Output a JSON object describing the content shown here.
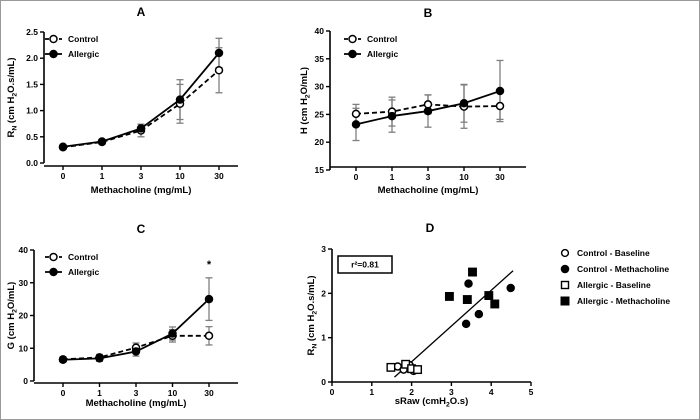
{
  "figure": {
    "background": "#ffffff",
    "border_color": "#9a9a9a"
  },
  "colors": {
    "series": "#000000",
    "error_bars": "#7f7f7f",
    "open_fill": "#ffffff"
  },
  "chart_data": [
    {
      "id": "A",
      "type": "line",
      "title": "A",
      "xlabel_segments": [
        {
          "t": "Methacholine (mg/mL)"
        }
      ],
      "ylabel_segments": [
        {
          "t": "R"
        },
        {
          "t": "N",
          "sub": true
        },
        {
          "t": " (cm H"
        },
        {
          "t": "2",
          "sub": true
        },
        {
          "t": "O.s/mL)"
        }
      ],
      "categories": [
        "0",
        "1",
        "3",
        "10",
        "30"
      ],
      "ylim": [
        0,
        2.5
      ],
      "yticks": [
        {
          "v": 0,
          "label": "0.0"
        },
        {
          "v": 0.5,
          "label": "0.5"
        },
        {
          "v": 1.0,
          "label": "1.0"
        },
        {
          "v": 1.5,
          "label": "1.5"
        },
        {
          "v": 2.0,
          "label": "2.0"
        },
        {
          "v": 2.5,
          "label": "2.5"
        }
      ],
      "series": [
        {
          "name": "Control",
          "marker": "circle",
          "fill": "open",
          "dash": true,
          "values": [
            0.3,
            0.4,
            0.62,
            1.13,
            1.77
          ],
          "errors": [
            0.03,
            0.04,
            0.12,
            0.37,
            0.43
          ]
        },
        {
          "name": "Allergic",
          "marker": "circle",
          "fill": "filled",
          "dash": false,
          "values": [
            0.31,
            0.41,
            0.66,
            1.21,
            2.1
          ],
          "errors": [
            0.03,
            0.04,
            0.08,
            0.38,
            0.28
          ]
        }
      ]
    },
    {
      "id": "B",
      "type": "line",
      "title": "B",
      "xlabel_segments": [
        {
          "t": "Methacholine (mg/mL)"
        }
      ],
      "ylabel_segments": [
        {
          "t": "H (cm H"
        },
        {
          "t": "2",
          "sub": true
        },
        {
          "t": "O/mL)"
        }
      ],
      "categories": [
        "0",
        "1",
        "3",
        "10",
        "30"
      ],
      "ylim": [
        15,
        40
      ],
      "yticks": [
        {
          "v": 15,
          "label": "15"
        },
        {
          "v": 20,
          "label": "20"
        },
        {
          "v": 25,
          "label": "25"
        },
        {
          "v": 30,
          "label": "30"
        },
        {
          "v": 35,
          "label": "35"
        },
        {
          "v": 40,
          "label": "40"
        }
      ],
      "series": [
        {
          "name": "Control",
          "marker": "circle",
          "fill": "open",
          "dash": true,
          "values": [
            25.1,
            25.5,
            26.8,
            26.4,
            26.5
          ],
          "errors": [
            1.7,
            2.6,
            1.7,
            3.9,
            2.4
          ]
        },
        {
          "name": "Allergic",
          "marker": "circle",
          "fill": "filled",
          "dash": false,
          "values": [
            23.2,
            24.7,
            25.6,
            27.0,
            29.2
          ],
          "errors": [
            2.9,
            2.9,
            2.9,
            3.4,
            5.5
          ]
        }
      ]
    },
    {
      "id": "C",
      "type": "line",
      "title": "C",
      "xlabel_segments": [
        {
          "t": "Methacholine (mg/mL)"
        }
      ],
      "ylabel_segments": [
        {
          "t": "G (cm H"
        },
        {
          "t": "2",
          "sub": true
        },
        {
          "t": "O/mL)"
        }
      ],
      "categories": [
        "0",
        "1",
        "3",
        "10",
        "30"
      ],
      "ylim": [
        0,
        40
      ],
      "yticks": [
        {
          "v": 0,
          "label": "0"
        },
        {
          "v": 10,
          "label": "10"
        },
        {
          "v": 20,
          "label": "20"
        },
        {
          "v": 30,
          "label": "30"
        },
        {
          "v": 40,
          "label": "40"
        }
      ],
      "series": [
        {
          "name": "Control",
          "marker": "circle",
          "fill": "open",
          "dash": true,
          "values": [
            6.6,
            7.2,
            10.2,
            13.8,
            13.8
          ],
          "errors": [
            0.8,
            0.9,
            1.4,
            1.9,
            2.8
          ]
        },
        {
          "name": "Allergic",
          "marker": "circle",
          "fill": "filled",
          "dash": false,
          "values": [
            6.5,
            6.9,
            9.0,
            14.5,
            25.0
          ],
          "errors": [
            0.5,
            0.9,
            1.4,
            2.0,
            6.5
          ]
        }
      ],
      "annotation": {
        "text": "*",
        "category_index": 4,
        "value": 34.5
      }
    },
    {
      "id": "D",
      "type": "scatter",
      "title": "D",
      "xlabel_segments": [
        {
          "t": "sRaw (cmH"
        },
        {
          "t": "2",
          "sub": true
        },
        {
          "t": "O.s)"
        }
      ],
      "ylabel_segments": [
        {
          "t": "R"
        },
        {
          "t": "N",
          "sub": true
        },
        {
          "t": " (cm H"
        },
        {
          "t": "2",
          "sub": true
        },
        {
          "t": "O.s/mL)"
        }
      ],
      "xlim": [
        0,
        5
      ],
      "xticks": [
        {
          "v": 0,
          "label": "0"
        },
        {
          "v": 1,
          "label": "1"
        },
        {
          "v": 2,
          "label": "2"
        },
        {
          "v": 3,
          "label": "3"
        },
        {
          "v": 4,
          "label": "4"
        },
        {
          "v": 5,
          "label": "5"
        }
      ],
      "ylim": [
        0,
        3
      ],
      "yticks": [
        {
          "v": 0,
          "label": "0"
        },
        {
          "v": 1,
          "label": "1"
        },
        {
          "v": 2,
          "label": "2"
        },
        {
          "v": 3,
          "label": "3"
        }
      ],
      "series": [
        {
          "name": "Control - Baseline",
          "marker": "circle",
          "fill": "open",
          "points": [
            [
              1.65,
              0.35
            ],
            [
              1.8,
              0.28
            ],
            [
              1.95,
              0.38
            ],
            [
              2.05,
              0.25
            ]
          ]
        },
        {
          "name": "Control - Methacholine",
          "marker": "circle",
          "fill": "filled",
          "points": [
            [
              3.37,
              1.31
            ],
            [
              3.43,
              2.22
            ],
            [
              3.69,
              1.53
            ],
            [
              4.49,
              2.12
            ]
          ]
        },
        {
          "name": "Allergic - Baseline",
          "marker": "square",
          "fill": "open",
          "points": [
            [
              1.48,
              0.33
            ],
            [
              1.85,
              0.4
            ],
            [
              2.0,
              0.3
            ],
            [
              2.15,
              0.28
            ]
          ]
        },
        {
          "name": "Allergic - Methacholine",
          "marker": "square",
          "fill": "filled",
          "points": [
            [
              2.95,
              1.93
            ],
            [
              3.4,
              1.86
            ],
            [
              3.53,
              2.48
            ],
            [
              3.94,
              1.95
            ],
            [
              4.09,
              1.76
            ]
          ]
        }
      ],
      "regression": {
        "x1": 1.57,
        "y1": 0.11,
        "x2": 4.55,
        "y2": 2.51
      },
      "annotation_box": {
        "text": "r²=0.81"
      }
    }
  ],
  "legend_d": {
    "items": [
      {
        "label": "Control - Baseline",
        "marker": "circle",
        "fill": "open"
      },
      {
        "label": "Control - Methacholine",
        "marker": "circle",
        "fill": "filled"
      },
      {
        "label": "Allergic - Baseline",
        "marker": "square",
        "fill": "open"
      },
      {
        "label": "Allergic - Methacholine",
        "marker": "square",
        "fill": "filled"
      }
    ]
  }
}
